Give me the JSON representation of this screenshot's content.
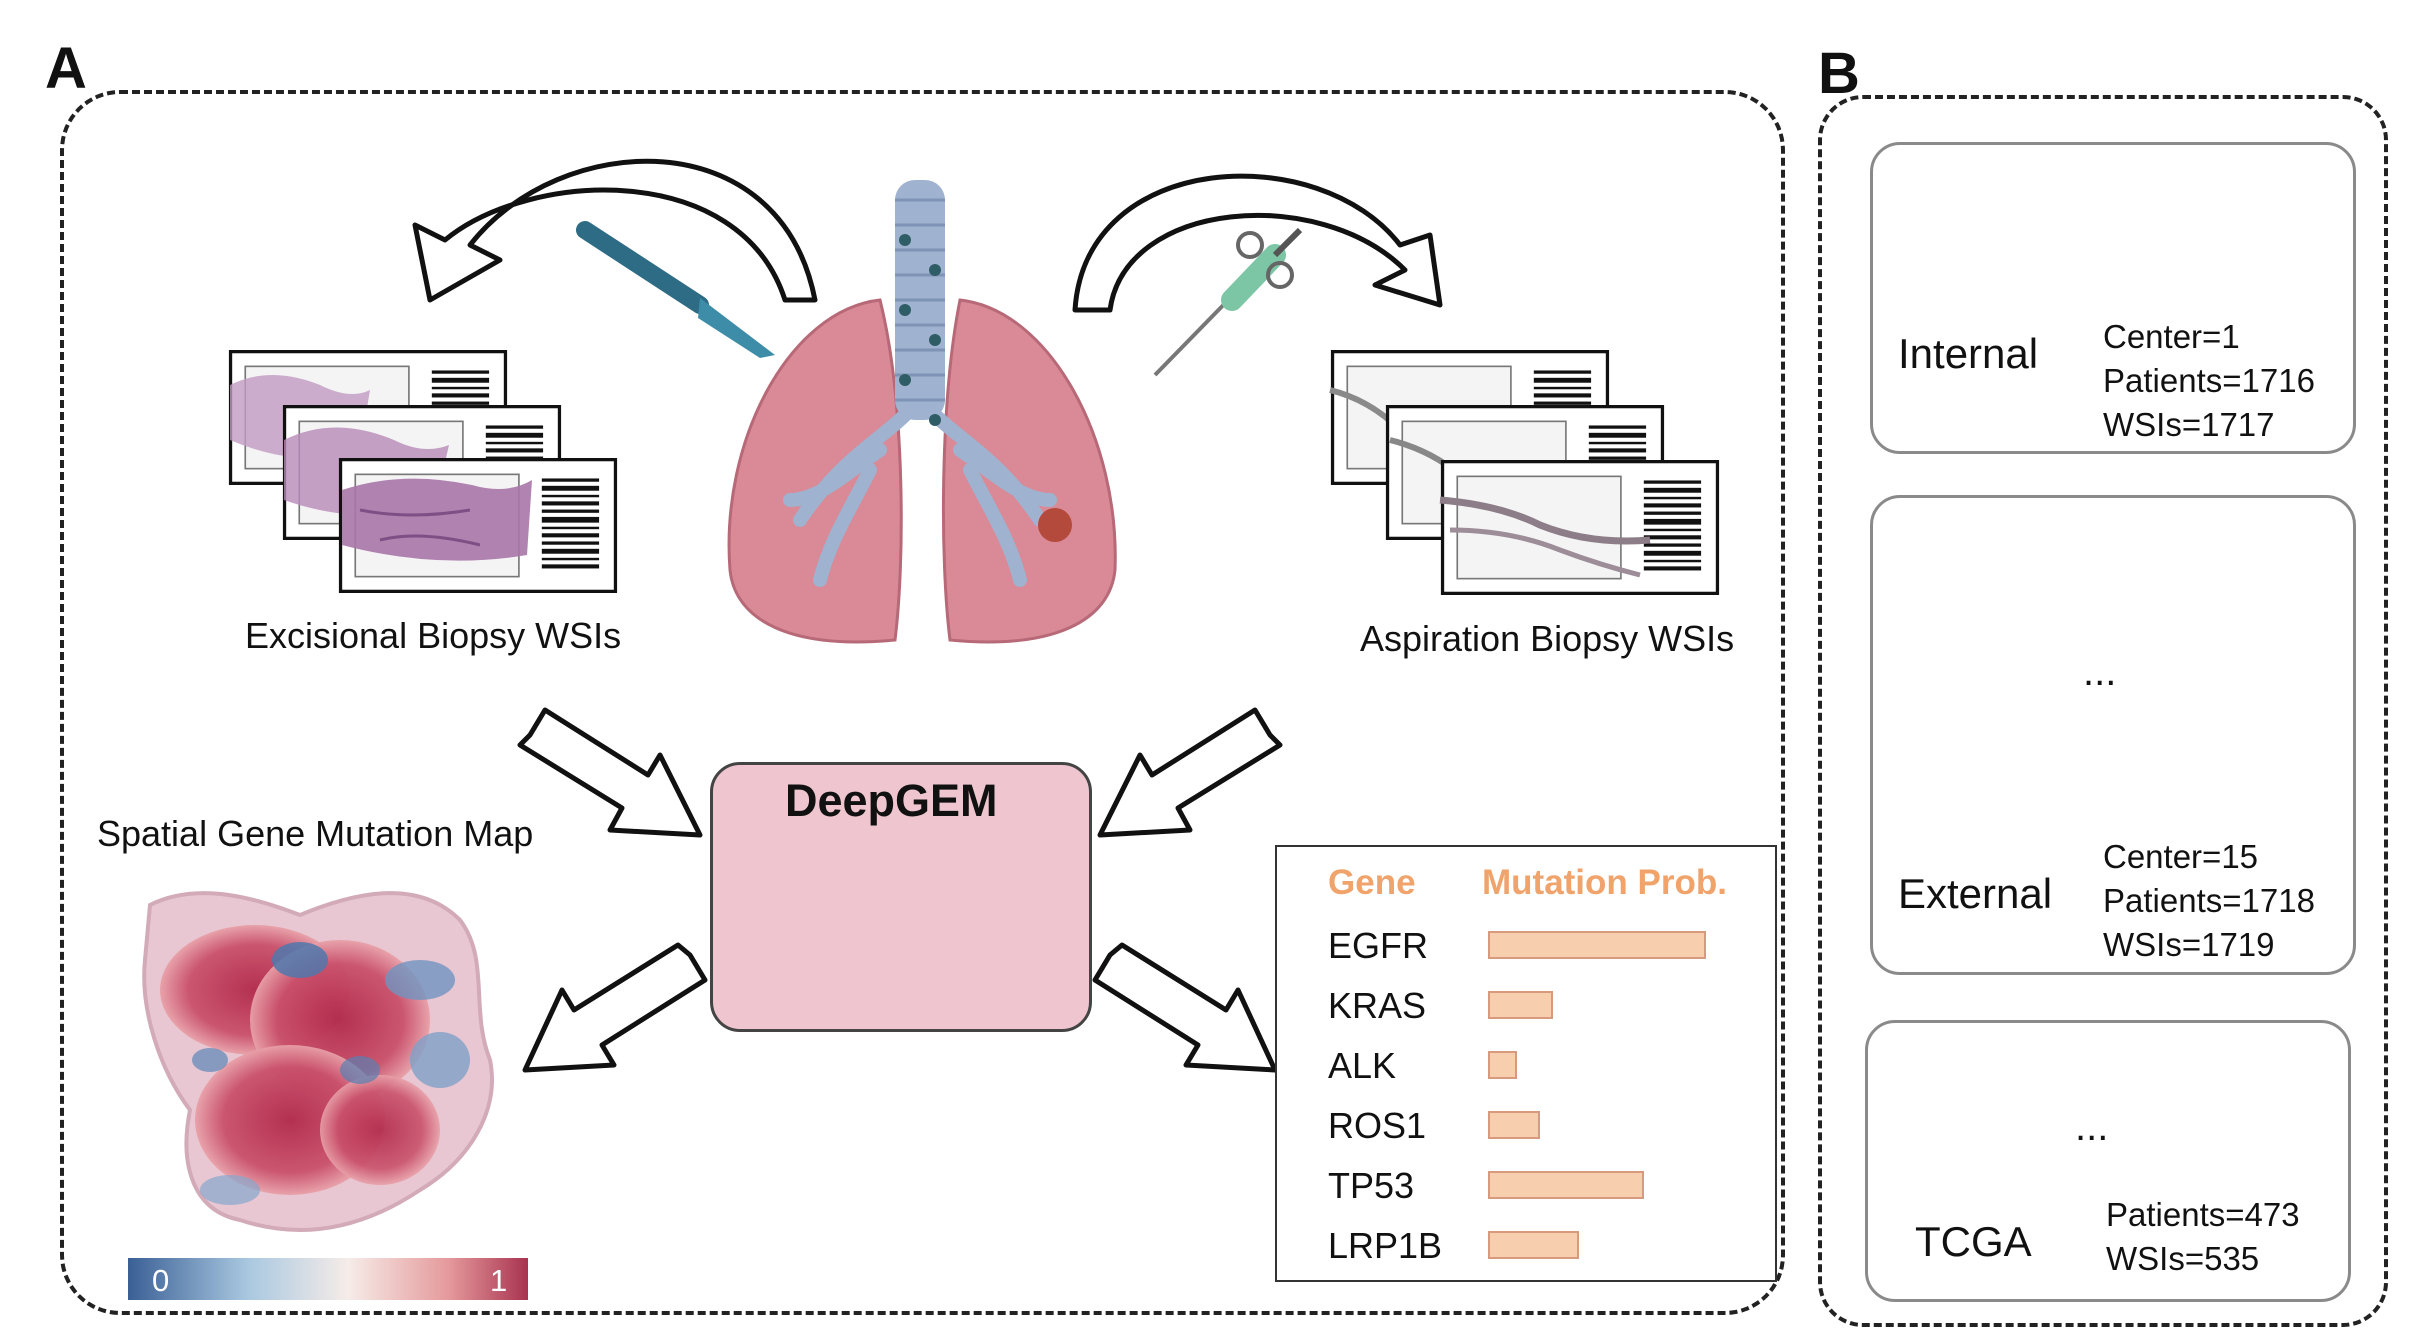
{
  "panel_a": {
    "letter": "A",
    "excisional_caption": "Excisional Biopsy WSIs",
    "aspiration_caption": "Aspiration Biopsy WSIs",
    "map_title": "Spatial Gene Mutation Map",
    "colorbar": {
      "min_label": "0",
      "max_label": "1",
      "low_color": "#3a5f95",
      "high_color": "#a83350"
    },
    "model_name": "DeepGEM",
    "table": {
      "header_gene": "Gene",
      "header_prob": "Mutation Prob.",
      "rows": [
        {
          "gene": "EGFR",
          "prob": 0.84
        },
        {
          "gene": "KRAS",
          "prob": 0.25
        },
        {
          "gene": "ALK",
          "prob": 0.11
        },
        {
          "gene": "ROS1",
          "prob": 0.2
        },
        {
          "gene": "TP53",
          "prob": 0.6
        },
        {
          "gene": "LRP1B",
          "prob": 0.35
        }
      ]
    }
  },
  "panel_b": {
    "letter": "B",
    "internal": {
      "label": "Internal",
      "center": "Center=1",
      "patients": "Patients=1716",
      "wsis": "WSIs=1717"
    },
    "external": {
      "label": "External",
      "center": "Center=15",
      "patients": "Patients=1718",
      "wsis": "WSIs=1719",
      "ellipsis": "..."
    },
    "tcga": {
      "label": "TCGA",
      "patients": "Patients=473",
      "wsis": "WSIs=535",
      "ellipsis": "..."
    }
  },
  "colors": {
    "hospital_green": "#7fcfb0",
    "hospital_gold": "#e9c46a",
    "table_header": "#f0a36b",
    "bar_fill": "#f8cfae",
    "model_fill": "#efc6cf"
  }
}
